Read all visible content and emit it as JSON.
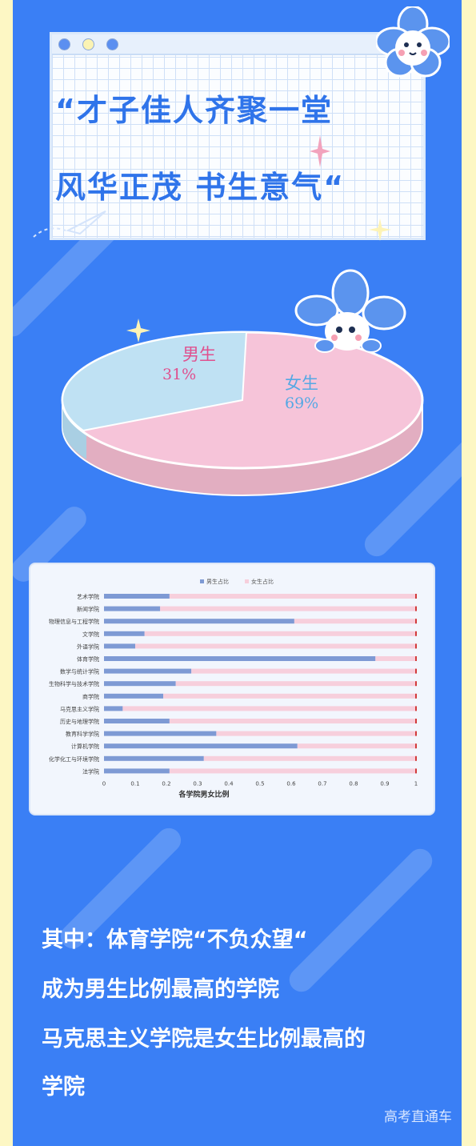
{
  "header": {
    "title_line1": "“才子佳人齐聚一堂",
    "title_line2": "风华正茂  书生意气“"
  },
  "pie_chart": {
    "type": "pie",
    "slices": [
      {
        "label": "男生",
        "value_label": "31%",
        "value": 31,
        "color": "#bfe1f3"
      },
      {
        "label": "女生",
        "value_label": "69%",
        "value": 69,
        "color": "#f6c4d9"
      }
    ]
  },
  "chart_data": {
    "type": "bar",
    "orientation": "horizontal",
    "stacked": true,
    "title": "各学院男女比例",
    "categories": [
      "艺术学院",
      "新闻学院",
      "物理信息与工程学院",
      "文学院",
      "外语学院",
      "体育学院",
      "数学与统计学院",
      "生物科学与技术学院",
      "商学院",
      "马克思主义学院",
      "历史与地理学院",
      "教育科学学院",
      "计算机学院",
      "化学化工与环境学院",
      "法学院"
    ],
    "series": [
      {
        "name": "男生占比",
        "color": "#7e9ad4",
        "values": [
          0.21,
          0.18,
          0.61,
          0.13,
          0.1,
          0.87,
          0.28,
          0.23,
          0.19,
          0.06,
          0.21,
          0.36,
          0.62,
          0.32,
          0.21
        ]
      },
      {
        "name": "女生占比",
        "color": "#f7cfdc",
        "values": [
          0.79,
          0.82,
          0.39,
          0.87,
          0.9,
          0.13,
          0.72,
          0.77,
          0.81,
          0.94,
          0.79,
          0.64,
          0.38,
          0.68,
          0.79
        ]
      }
    ],
    "xlim": [
      0,
      1
    ],
    "xticks": [
      "0",
      "0.1",
      "0.2",
      "0.3",
      "0.4",
      "0.5",
      "0.6",
      "0.7",
      "0.8",
      "0.9",
      "1"
    ],
    "legend": "top"
  },
  "summary": {
    "line1": "其中：体育学院“不负众望“",
    "line2": "成为男生比例最高的学院",
    "line3": "马克思主义学院是女生比例最高的",
    "line4": "学院"
  },
  "footer": {
    "source": "高考直通车"
  }
}
